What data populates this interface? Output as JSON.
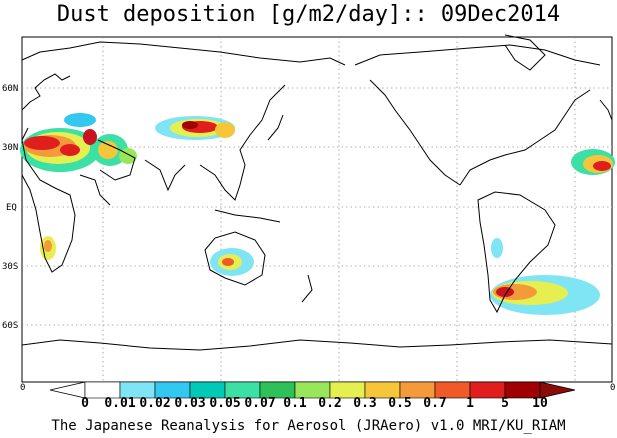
{
  "title": "Dust deposition [g/m2/day]:: 09Dec2014",
  "lat_labels": [
    "60N",
    "30N",
    "EQ",
    "30S",
    "60S"
  ],
  "colorbar": {
    "edge_left": "0",
    "edge_right": "0",
    "labels": [
      "0",
      "0.01",
      "0.02",
      "0.03",
      "0.05",
      "0.07",
      "0.1",
      "0.2",
      "0.3",
      "0.5",
      "0.7",
      "1",
      "5",
      "10"
    ],
    "colors": [
      "#ffffff",
      "#7fe5f5",
      "#33c8ef",
      "#00c9b8",
      "#3ce0a4",
      "#2ec15a",
      "#9ae65a",
      "#e5f050",
      "#f5c53a",
      "#f59a3a",
      "#ef5a28",
      "#e01e1e",
      "#c8141e",
      "#a00000",
      "#8c0a0a"
    ]
  },
  "credit": "The Japanese Reanalysis for Aerosol (JRAero) v1.0 MRI/KU_RIAM",
  "legend_colors": {
    "land_outline": "#000000",
    "grid": "#999999"
  }
}
